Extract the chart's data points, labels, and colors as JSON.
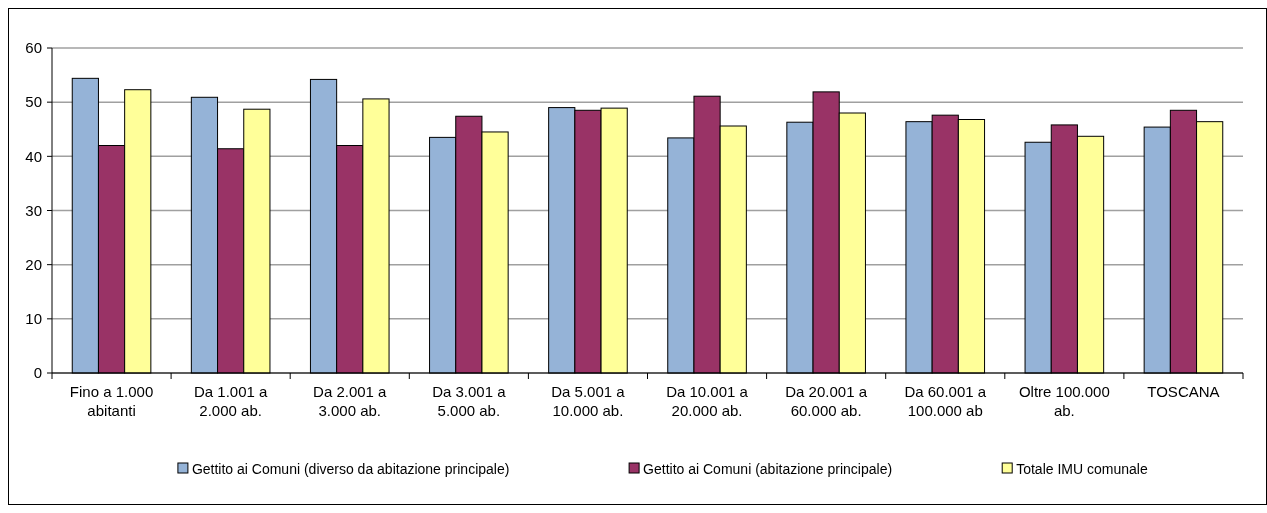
{
  "chart_data": {
    "type": "bar",
    "categories": [
      "Fino a 1.000\nabitanti",
      "Da 1.001 a\n2.000 ab.",
      "Da 2.001 a\n3.000 ab.",
      "Da 3.001 a\n5.000 ab.",
      "Da 5.001 a\n10.000 ab.",
      "Da 10.001 a\n20.000 ab.",
      "Da 20.001 a\n60.000 ab.",
      "Da 60.001 a\n100.000 ab",
      "Oltre 100.000\nab.",
      "TOSCANA"
    ],
    "series": [
      {
        "name": "Gettito ai Comuni (diverso da abitazione principale)",
        "color": "#95b3d7",
        "values": [
          54.4,
          50.9,
          54.2,
          43.5,
          49.0,
          43.4,
          46.3,
          46.4,
          42.6,
          45.4
        ]
      },
      {
        "name": "Gettito ai Comuni (abitazione principale)",
        "color": "#993366",
        "values": [
          42.0,
          41.4,
          42.0,
          47.4,
          48.5,
          51.1,
          51.9,
          47.6,
          45.8,
          48.5
        ]
      },
      {
        "name": "Totale IMU comunale",
        "color": "#ffff99",
        "values": [
          52.3,
          48.7,
          50.6,
          44.5,
          48.9,
          45.6,
          48.0,
          46.8,
          43.7,
          46.4
        ]
      }
    ],
    "ylim": [
      0,
      60
    ],
    "yticks": [
      0,
      10,
      20,
      30,
      40,
      50,
      60
    ],
    "grid": "y",
    "legend": "bottom"
  }
}
